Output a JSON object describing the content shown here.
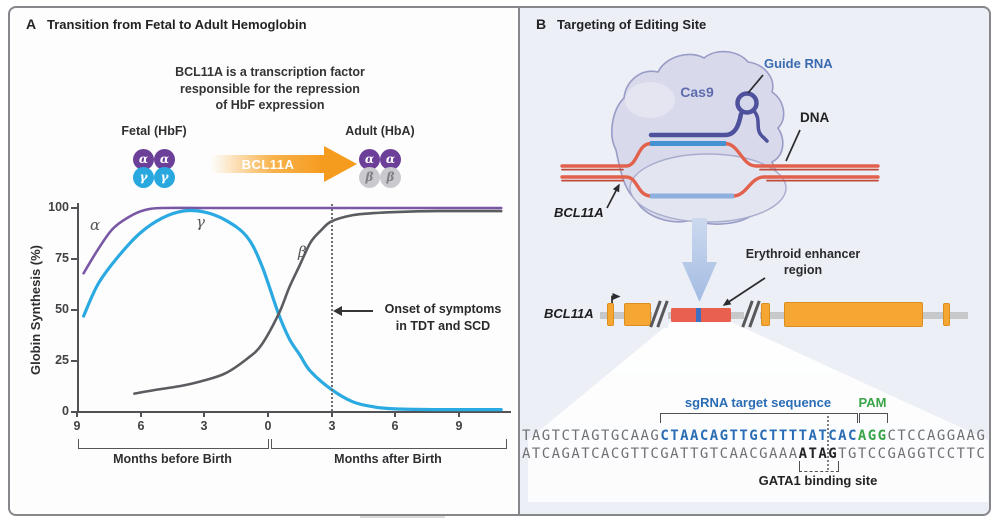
{
  "figure": {
    "panel_a": {
      "label": "A",
      "title": "Transition from Fetal to Adult Hemoglobin",
      "note": [
        "BCL11A is a transcription factor",
        "responsible for the repression",
        "of HbF expression"
      ],
      "fetal": {
        "label": "Fetal (HbF)",
        "top": [
          "α",
          "α"
        ],
        "bottom": [
          "γ",
          "γ"
        ]
      },
      "adult": {
        "label": "Adult (HbA)",
        "top": [
          "α",
          "α"
        ],
        "bottom": [
          "β",
          "β"
        ]
      },
      "arrow_label": "BCL11A",
      "chart_data": {
        "type": "line",
        "ylabel": "Globin Synthesis (%)",
        "ylim": [
          0,
          100
        ],
        "y_ticks": [
          0,
          25,
          50,
          75,
          100
        ],
        "x_unit": "months relative to birth",
        "x_range": [
          -9,
          11
        ],
        "grid": false,
        "x_ticks": [
          {
            "m": -9,
            "label": "9"
          },
          {
            "m": -6,
            "label": "6"
          },
          {
            "m": -3,
            "label": "3"
          },
          {
            "m": 0,
            "label": "0"
          },
          {
            "m": 3,
            "label": "3"
          },
          {
            "m": 6,
            "label": "6"
          },
          {
            "m": 9,
            "label": "9"
          }
        ],
        "x_group_labels": [
          {
            "label": "Months before Birth",
            "range": [
              -9,
              0
            ]
          },
          {
            "label": "Months after Birth",
            "range": [
              0,
              11
            ]
          }
        ],
        "series": [
          {
            "name": "α",
            "color": "#7a57a5",
            "points": [
              [
                -8.7,
                68
              ],
              [
                -8,
                80
              ],
              [
                -7.3,
                90
              ],
              [
                -6.5,
                96
              ],
              [
                -5.8,
                99
              ],
              [
                -5,
                100
              ],
              [
                -3,
                100
              ],
              [
                0,
                100
              ],
              [
                4,
                100
              ],
              [
                8,
                100
              ],
              [
                11,
                100
              ]
            ]
          },
          {
            "name": "γ",
            "color": "#2ba9e1",
            "points": [
              [
                -8.7,
                47
              ],
              [
                -8,
                63
              ],
              [
                -7,
                77
              ],
              [
                -6,
                88
              ],
              [
                -5,
                95
              ],
              [
                -4,
                98.5
              ],
              [
                -3,
                98
              ],
              [
                -2,
                94
              ],
              [
                -1,
                86
              ],
              [
                -0.3,
                72
              ],
              [
                0.5,
                48
              ],
              [
                1,
                36
              ],
              [
                1.5,
                28
              ],
              [
                2,
                20
              ],
              [
                3,
                11
              ],
              [
                4,
                5
              ],
              [
                5,
                2.5
              ],
              [
                6,
                1.5
              ],
              [
                8,
                1.2
              ],
              [
                11,
                1.2
              ]
            ]
          },
          {
            "name": "β",
            "color": "#5b5c5f",
            "points": [
              [
                -6.3,
                9
              ],
              [
                -5.5,
                10.5
              ],
              [
                -4,
                13
              ],
              [
                -3,
                15.5
              ],
              [
                -2,
                19
              ],
              [
                -1,
                26
              ],
              [
                -0.3,
                33
              ],
              [
                0.5,
                48
              ],
              [
                1,
                61
              ],
              [
                1.5,
                72
              ],
              [
                2,
                83
              ],
              [
                2.5,
                89
              ],
              [
                3,
                93.5
              ],
              [
                4,
                96.5
              ],
              [
                5,
                97.5
              ],
              [
                6,
                98
              ],
              [
                8,
                98.5
              ],
              [
                11,
                98.5
              ]
            ]
          }
        ],
        "annotation": {
          "line1": "Onset of symptoms",
          "line2": "in TDT and SCD",
          "dashed_line_at_month": 3
        }
      }
    },
    "panel_b": {
      "label": "B",
      "title": "Targeting of Editing Site",
      "cas9_label": "Cas9",
      "guide_rna_label": "Guide RNA",
      "dna_label": "DNA",
      "bcl11a_label": "BCL11A",
      "gene_label": "BCL11A",
      "enhancer_label": "Erythroid enhancer region",
      "sgrna_label": "sgRNA target sequence",
      "pam_label": "PAM",
      "gata1_label": "GATA1 binding site",
      "sequence": {
        "top": [
          {
            "t": "TAGTCTAGTGCAAG",
            "c": "gray"
          },
          {
            "t": "CTAACAGTTGCTTTTATCAC",
            "c": "blue"
          },
          {
            "t": "AGG",
            "c": "green"
          },
          {
            "t": "CTCCAGGAAG",
            "c": "gray"
          }
        ],
        "bottom": [
          {
            "t": "ATCAGATCACGTTCGATTGTCAACGAAA",
            "c": "gray"
          },
          {
            "t": "ATAG",
            "c": "dark"
          },
          {
            "t": "TGTCCGAGGTCCTTC",
            "c": "gray"
          }
        ]
      }
    },
    "colors": {
      "alpha_subunit": "#6c3f98",
      "gamma_subunit": "#29a8e0",
      "beta_subunit": "#c9c9ce",
      "bcl11a_arrow_orange": "#f59b1e",
      "curve_alpha": "#7a57a5",
      "curve_gamma": "#2ba9e1",
      "curve_beta": "#5b5c5f",
      "dna_red": "#e2614d",
      "guide_rna_blue": "#4e529c",
      "pairing_blue_top": "#4592d3",
      "pairing_blue_bottom": "#8fb0de",
      "exon_orange": "#f6a733",
      "enhancer_red": "#e9614e",
      "enhancer_tick_blue": "#3f6fc0",
      "sgrna_blue": "#2a6db5",
      "pam_green": "#3aa449",
      "panel_b_background": "#edeff6"
    }
  }
}
